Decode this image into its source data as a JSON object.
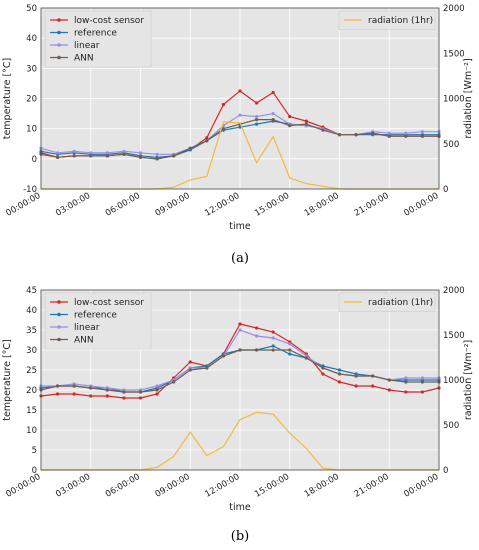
{
  "chart_data": [
    {
      "type": "line",
      "panel_label": "(a)",
      "x_ticks": [
        "00:00:00",
        "03:00:00",
        "06:00:00",
        "09:00:00",
        "12:00:00",
        "15:00:00",
        "18:00:00",
        "21:00:00",
        "00:00:00"
      ],
      "xlabel": "time",
      "ylabel": "temperature [°C]",
      "ylabel_right": "radiation [Wm⁻²]",
      "ylim": [
        -10,
        50
      ],
      "y_ticks": [
        -10,
        0,
        10,
        20,
        30,
        40,
        50
      ],
      "ylim_right": [
        0,
        2000
      ],
      "y_ticks_right": [
        0,
        500,
        1000,
        1500,
        2000
      ],
      "x": [
        0,
        1,
        2,
        3,
        4,
        5,
        6,
        7,
        8,
        9,
        10,
        11,
        12,
        13,
        14,
        15,
        16,
        17,
        18,
        19,
        20,
        21,
        22,
        23,
        24
      ],
      "series": [
        {
          "name": "low-cost sensor",
          "color": "#d62728",
          "axis": "left",
          "values": [
            2,
            0.5,
            1,
            1,
            1,
            1.5,
            0.5,
            0,
            1,
            3,
            7,
            18,
            22.5,
            18.5,
            22,
            14,
            12.5,
            10.5,
            8,
            8,
            8.5,
            7.5,
            7.5,
            7.5,
            7.5
          ]
        },
        {
          "name": "reference",
          "color": "#1f77b4",
          "axis": "left",
          "values": [
            2.5,
            1.5,
            2,
            1.5,
            1.5,
            2,
            1,
            0.5,
            1,
            3,
            6,
            9.5,
            10.5,
            11.5,
            12.5,
            11.5,
            11,
            10,
            8,
            8,
            8,
            8,
            8,
            8,
            8
          ]
        },
        {
          "name": "linear",
          "color": "#9a8fe8",
          "axis": "left",
          "values": [
            3.5,
            2,
            2.5,
            2,
            2,
            2.5,
            2,
            1.5,
            1.5,
            3.5,
            6,
            11,
            14.5,
            14,
            15,
            11.5,
            11,
            10,
            8,
            8,
            9,
            8.5,
            8.5,
            9,
            9
          ]
        },
        {
          "name": "ANN",
          "color": "#6f5f4f",
          "axis": "left",
          "values": [
            1.5,
            0.5,
            1,
            1,
            1,
            1.5,
            0.5,
            0,
            1,
            3.5,
            6,
            10,
            11.5,
            13,
            13,
            11,
            11.5,
            9.5,
            8,
            8,
            8.5,
            7.5,
            7.5,
            7.5,
            7.5
          ]
        },
        {
          "name": "radiation (1hr)",
          "color": "#f5b93a",
          "axis": "right",
          "values": [
            0,
            0,
            0,
            0,
            0,
            0,
            0,
            0,
            20,
            100,
            140,
            740,
            730,
            290,
            580,
            120,
            60,
            30,
            0,
            0,
            0,
            0,
            0,
            0,
            0
          ]
        }
      ],
      "legend_left": "top-left",
      "legend_right": "top-right",
      "grid": true
    },
    {
      "type": "line",
      "panel_label": "(b)",
      "x_ticks": [
        "00:00:00",
        "03:00:00",
        "06:00:00",
        "09:00:00",
        "12:00:00",
        "15:00:00",
        "18:00:00",
        "21:00:00",
        "00:00:00"
      ],
      "xlabel": "time",
      "ylabel": "temperature [°C]",
      "ylabel_right": "radiation [Wm⁻²]",
      "ylim": [
        0,
        45
      ],
      "y_ticks": [
        0,
        5,
        10,
        15,
        20,
        25,
        30,
        35,
        40,
        45
      ],
      "ylim_right": [
        0,
        2000
      ],
      "y_ticks_right": [
        0,
        500,
        1000,
        1500,
        2000
      ],
      "x": [
        0,
        1,
        2,
        3,
        4,
        5,
        6,
        7,
        8,
        9,
        10,
        11,
        12,
        13,
        14,
        15,
        16,
        17,
        18,
        19,
        20,
        21,
        22,
        23,
        24
      ],
      "series": [
        {
          "name": "low-cost sensor",
          "color": "#d62728",
          "axis": "left",
          "values": [
            18.5,
            19,
            19,
            18.5,
            18.5,
            18,
            18,
            19,
            23,
            27,
            26,
            29,
            36.5,
            35.5,
            34.5,
            32,
            29,
            24,
            22,
            21,
            21,
            20,
            19.5,
            19.5,
            20.5
          ]
        },
        {
          "name": "reference",
          "color": "#1f77b4",
          "axis": "left",
          "values": [
            20.5,
            21,
            21,
            20.5,
            20.5,
            19.5,
            19.5,
            20.5,
            22.5,
            25.5,
            26,
            29,
            30,
            30,
            31,
            29,
            28,
            26,
            25,
            24,
            23.5,
            22.5,
            22.5,
            22.5,
            22.5
          ]
        },
        {
          "name": "linear",
          "color": "#9a8fe8",
          "axis": "left",
          "values": [
            21,
            21,
            21.5,
            21,
            20.5,
            20,
            20,
            21,
            22.5,
            25.5,
            25.5,
            28.5,
            35,
            33.5,
            33,
            31.5,
            28.5,
            25.5,
            24,
            23.5,
            23.5,
            22.5,
            23,
            23,
            23
          ]
        },
        {
          "name": "ANN",
          "color": "#6f5f4f",
          "axis": "left",
          "values": [
            20,
            21,
            21,
            20.5,
            20,
            19.5,
            19.5,
            20,
            22,
            25,
            25.5,
            28.5,
            30,
            30,
            30,
            30,
            28,
            25.5,
            24,
            23.5,
            23.5,
            22.5,
            22,
            22,
            22
          ]
        },
        {
          "name": "radiation (1hr)",
          "color": "#f5b93a",
          "axis": "right",
          "values": [
            0,
            0,
            0,
            0,
            0,
            0,
            0,
            30,
            150,
            420,
            160,
            260,
            560,
            640,
            620,
            410,
            240,
            20,
            0,
            0,
            0,
            0,
            0,
            0,
            0
          ]
        }
      ],
      "legend_left": "top-left",
      "legend_right": "top-right",
      "grid": true
    }
  ]
}
